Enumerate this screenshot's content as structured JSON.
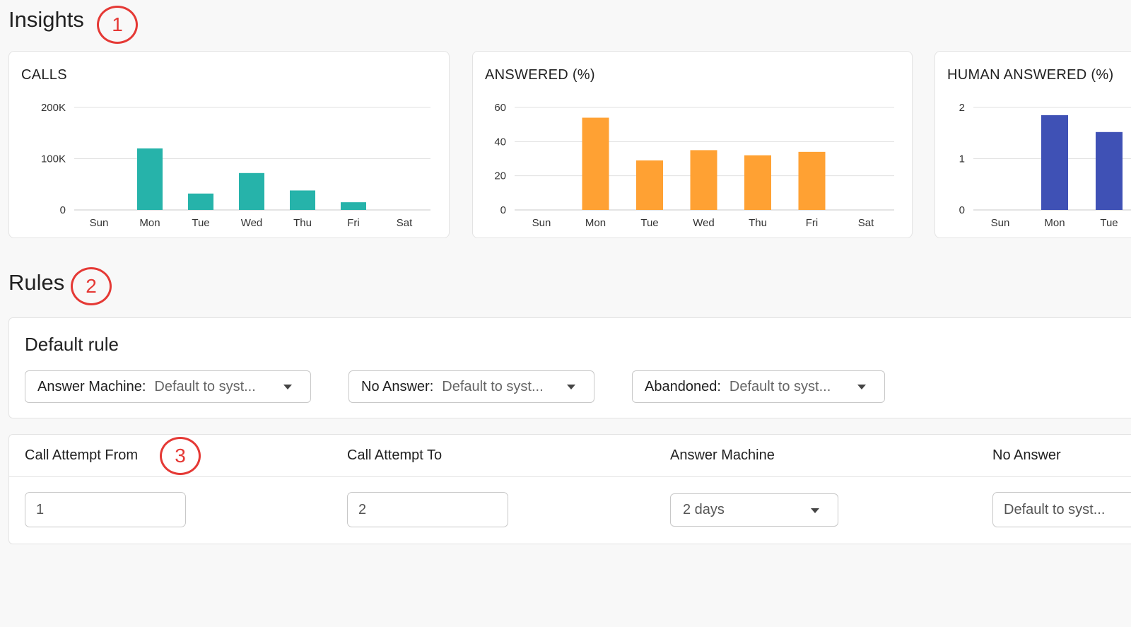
{
  "insights": {
    "title": "Insights",
    "callout": "1"
  },
  "chart_data": [
    {
      "type": "bar",
      "title": "CALLS",
      "categories": [
        "Sun",
        "Mon",
        "Tue",
        "Wed",
        "Thu",
        "Fri",
        "Sat"
      ],
      "values": [
        0,
        120000,
        32000,
        72000,
        38000,
        15000,
        0
      ],
      "yticks": [
        {
          "v": 0,
          "label": "0"
        },
        {
          "v": 100000,
          "label": "100K"
        },
        {
          "v": 200000,
          "label": "200K"
        }
      ],
      "ylim": [
        0,
        200000
      ],
      "color": "#26b3aa"
    },
    {
      "type": "bar",
      "title": "ANSWERED (%)",
      "categories": [
        "Sun",
        "Mon",
        "Tue",
        "Wed",
        "Thu",
        "Fri",
        "Sat"
      ],
      "values": [
        0,
        54,
        29,
        35,
        32,
        34,
        0
      ],
      "yticks": [
        {
          "v": 0,
          "label": "0"
        },
        {
          "v": 20,
          "label": "20"
        },
        {
          "v": 40,
          "label": "40"
        },
        {
          "v": 60,
          "label": "60"
        }
      ],
      "ylim": [
        0,
        60
      ],
      "color": "#ffa133"
    },
    {
      "type": "bar",
      "title": "HUMAN ANSWERED (%)",
      "categories": [
        "Sun",
        "Mon",
        "Tue"
      ],
      "values": [
        0,
        1.85,
        1.52
      ],
      "yticks": [
        {
          "v": 0,
          "label": "0"
        },
        {
          "v": 1,
          "label": "1"
        },
        {
          "v": 2,
          "label": "2"
        }
      ],
      "ylim": [
        0,
        2
      ],
      "color": "#3f51b5"
    }
  ],
  "rules": {
    "title": "Rules",
    "callout": "2",
    "default_rule": {
      "title": "Default rule",
      "selects": [
        {
          "label": "Answer Machine:",
          "value": "Default to syst..."
        },
        {
          "label": "No Answer:",
          "value": "Default to syst..."
        },
        {
          "label": "Abandoned:",
          "value": "Default to syst..."
        }
      ]
    },
    "table": {
      "callout": "3",
      "headers": [
        "Call Attempt From",
        "Call Attempt To",
        "Answer Machine",
        "No Answer"
      ],
      "row": {
        "from": "1",
        "to": "2",
        "answer_machine": "2 days",
        "no_answer": "Default to syst..."
      }
    }
  }
}
